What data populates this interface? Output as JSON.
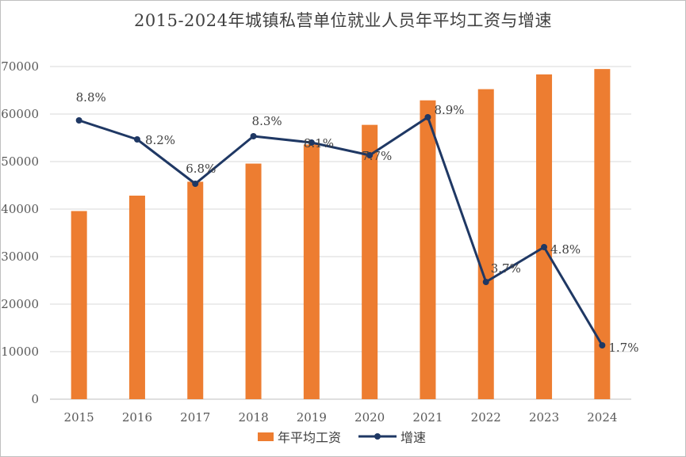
{
  "title": "2015-2024年城镇私营单位就业人员年平均工资与增速",
  "colors": {
    "bar": "#ED7D31",
    "line": "#1F3864",
    "grid": "#D9D9D9",
    "axis": "#BFBFBF"
  },
  "chart_data": {
    "type": "bar+line",
    "title": "2015-2024年城镇私营单位就业人员年平均工资与增速",
    "categories": [
      "2015",
      "2016",
      "2017",
      "2018",
      "2019",
      "2020",
      "2021",
      "2022",
      "2023",
      "2024"
    ],
    "ylim": [
      0,
      70000
    ],
    "yticks": [
      0,
      10000,
      20000,
      30000,
      40000,
      50000,
      60000,
      70000
    ],
    "grid": true,
    "legend": "bottom",
    "series": [
      {
        "name": "年平均工资",
        "type": "bar",
        "values": [
          39589,
          42833,
          45761,
          49575,
          53604,
          57727,
          62884,
          65237,
          68340,
          69476
        ]
      },
      {
        "name": "增速",
        "type": "line",
        "values": [
          8.8,
          8.2,
          6.8,
          8.3,
          8.1,
          7.7,
          8.9,
          3.7,
          4.8,
          1.7
        ],
        "labels": [
          "8.8%",
          "8.2%",
          "6.8%",
          "8.3%",
          "8.1%",
          "7.7%",
          "8.9%",
          "3.7%",
          "4.8%",
          "1.7%"
        ]
      }
    ]
  }
}
